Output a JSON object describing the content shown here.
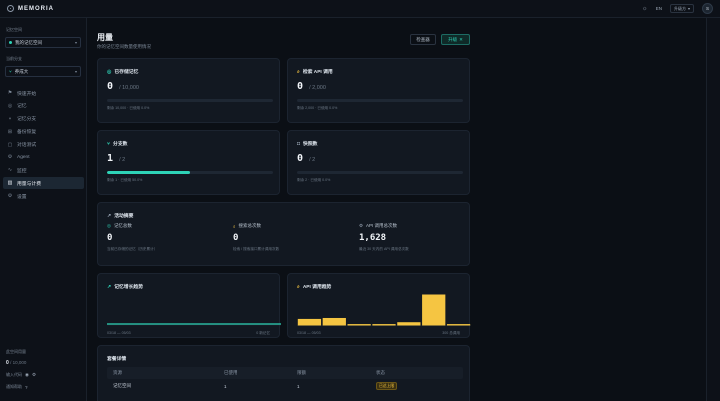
{
  "topbar": {
    "brand": "MEMORIA",
    "lang": "EN",
    "select": "升级方",
    "avatar": "S",
    "icons": [
      "brain-logo-icon",
      "sun-icon",
      "chevron-down-icon"
    ]
  },
  "sidebar": {
    "space_label": "记忆空间",
    "space_value": "我的记忆空间",
    "branch_label": "当前分支",
    "branch_value": "养成大",
    "items": [
      {
        "icon": "flag-icon",
        "glyph": "⚑",
        "label": "快速开始"
      },
      {
        "icon": "brain-icon",
        "glyph": "◎",
        "label": "记忆"
      },
      {
        "icon": "branch-icon",
        "glyph": "⑂",
        "label": "记忆分支"
      },
      {
        "icon": "backup-icon",
        "glyph": "⊞",
        "label": "备份恢复"
      },
      {
        "icon": "chat-icon",
        "glyph": "▢",
        "label": "对话测试"
      },
      {
        "icon": "agent-icon",
        "glyph": "⚙",
        "label": "Agent"
      },
      {
        "icon": "monitor-icon",
        "glyph": "∿",
        "label": "监控"
      },
      {
        "icon": "usage-icon",
        "glyph": "▥",
        "label": "用量与计费"
      },
      {
        "icon": "settings-icon",
        "glyph": "⚙",
        "label": "设置"
      }
    ],
    "active_index": 7,
    "quota_label": "此空间用量",
    "quota_used": "0",
    "quota_total": "/ 10,000",
    "user_label": "输入代码",
    "help_label": "通知帮助"
  },
  "header": {
    "title": "用量",
    "subtitle": "你的记忆空间数量使用情况",
    "check_btn": "检查器",
    "upgrade_btn": "升级",
    "upgrade_icon": "sparkle-icon"
  },
  "cards": {
    "memories": {
      "title": "已存储记忆",
      "value": "0",
      "total": "/ 10,000",
      "progress": 0,
      "foot": "剩余 10,000 · 已使用 0.0%"
    },
    "search": {
      "title": "检索 API 调用",
      "value": "0",
      "total": "/ 2,000",
      "progress": 0,
      "foot": "剩余 2,000 · 已使用 0.0%"
    },
    "branches": {
      "title": "分支数",
      "value": "1",
      "total": "/ 2",
      "progress": 0.5,
      "foot": "剩余 1 · 已使用 50.0%"
    },
    "snapshots": {
      "title": "快照数",
      "value": "0",
      "total": "/ 2",
      "progress": 0,
      "foot": "剩余 2 · 已使用 0.0%"
    }
  },
  "activity": {
    "title": "活动摘要",
    "items": [
      {
        "icon": "brain-icon",
        "label": "记忆总数",
        "value": "0",
        "desc": "当前已存储的记忆（历史累计）"
      },
      {
        "icon": "search-icon",
        "label": "搜索总次数",
        "value": "0",
        "desc": "检索 / 搜索接口累计调用次数"
      },
      {
        "icon": "api-icon",
        "label": "API 调用总次数",
        "value": "1,628",
        "desc": "最近 30 天内的 API 调用总次数"
      }
    ]
  },
  "growth_chart": {
    "title": "记忆增长趋势",
    "x_start": "03/18 — 05/03",
    "x_end": "0 新记忆"
  },
  "api_chart": {
    "title": "API 调用趋势",
    "x_start": "03/18 — 05/03",
    "x_end": "300 总调用"
  },
  "plan": {
    "title": "套餐详情",
    "headers": [
      "资源",
      "已使用",
      "限额",
      "状态"
    ],
    "rows": [
      {
        "name": "记忆空间",
        "used": "1",
        "limit": "1",
        "status": "已达上限"
      }
    ]
  },
  "chart_data": [
    {
      "type": "line",
      "title": "记忆增长趋势",
      "x": [
        "03/18",
        "05/03"
      ],
      "series": [
        {
          "values": [
            0,
            0
          ]
        }
      ]
    },
    {
      "type": "bar",
      "title": "API 调用趋势",
      "series": [
        {
          "values": [
            14,
            16,
            3,
            3,
            7,
            66,
            3
          ]
        }
      ]
    }
  ],
  "colors": {
    "accent": "#2ed3b7",
    "amber": "#f5c542",
    "bg": "#0b0f15",
    "card": "#121821"
  }
}
